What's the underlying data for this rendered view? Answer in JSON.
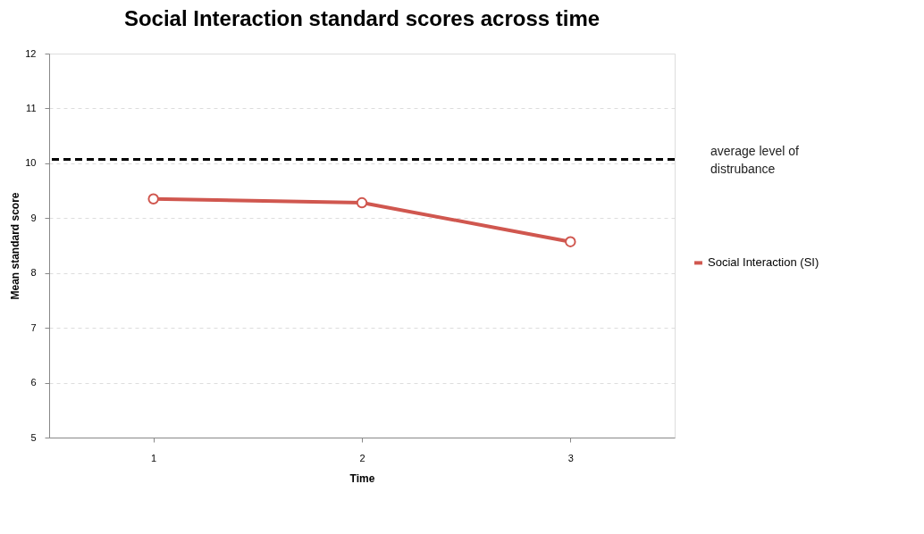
{
  "chart_data": {
    "type": "line",
    "title": "Social Interaction standard scores across time",
    "xlabel": "Time",
    "ylabel": "Mean standard score",
    "categories": [
      "1",
      "2",
      "3"
    ],
    "series": [
      {
        "name": "Social Interaction (SI)",
        "color": "#d0574f",
        "values": [
          9.35,
          9.28,
          8.57
        ]
      }
    ],
    "ylim": [
      5,
      12
    ],
    "yticks": [
      5,
      6,
      7,
      8,
      9,
      10,
      11,
      12
    ],
    "grid": "y",
    "legend": "right",
    "marker": "circle",
    "line_style": "solid",
    "ref_lines": [
      {
        "axis": "y",
        "value": 10.07,
        "label": "average level of distrubance",
        "color": "#000000",
        "line_style": "dashed"
      }
    ]
  }
}
